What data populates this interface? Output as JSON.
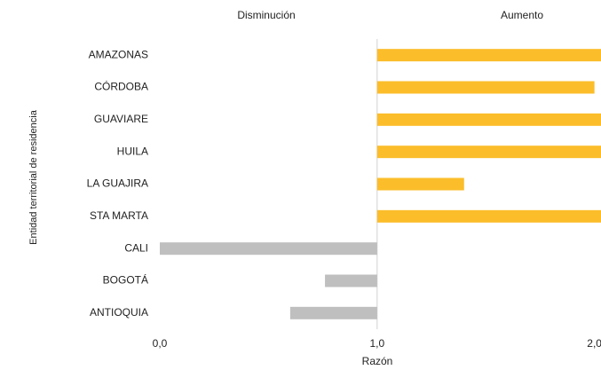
{
  "chart_data": {
    "type": "diverging-bar",
    "annotations": [
      "Disminución",
      "Aumento"
    ],
    "xlabel": "Razón",
    "ylabel": "Entidad territorial de residencia",
    "categories": [
      "AMAZONAS",
      "CÓRDOBA",
      "GUAVIARE",
      "HUILA",
      "LA GUAJIRA",
      "STA MARTA",
      "CALI",
      "BOGOTÁ",
      "ANTIOQUIA"
    ],
    "values": [
      2.03,
      2.0,
      2.03,
      2.03,
      1.4,
      2.03,
      0.0,
      0.76,
      0.6
    ],
    "base": 1,
    "increase_color": "#fbbd2a",
    "decrease_color": "#bfbfbf",
    "xlim": [
      0,
      2.03
    ],
    "xticks": [
      {
        "value": 0,
        "label": "0,0"
      },
      {
        "value": 1,
        "label": "1,0"
      },
      {
        "value": 2,
        "label": "2,0"
      }
    ]
  }
}
